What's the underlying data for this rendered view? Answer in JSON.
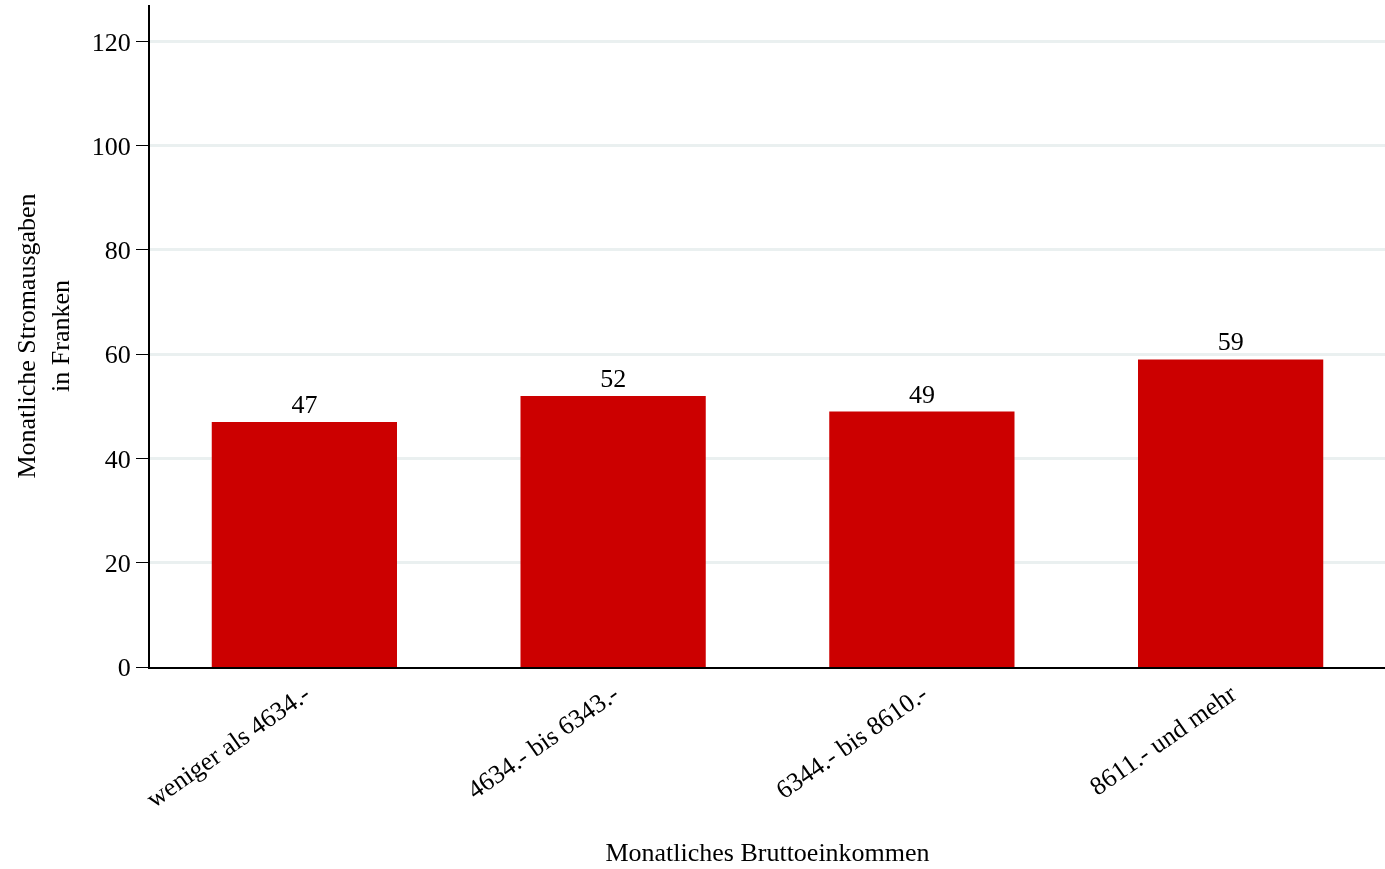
{
  "chart_data": {
    "type": "bar",
    "categories": [
      "weniger als 4634.-",
      "4634.- bis 6343.-",
      "6344.- bis 8610.-",
      "8611.- und mehr"
    ],
    "values": [
      47,
      52,
      49,
      59
    ],
    "color": "#cc0000",
    "xlabel": "Monatliches Bruttoeinkommen",
    "ylabel": "Monatliche Stromausgaben\nin Franken",
    "ylim": [
      0,
      127
    ],
    "yticks": [
      0,
      20,
      40,
      60,
      80,
      100,
      120
    ],
    "grid": "y",
    "data_labels": true
  }
}
